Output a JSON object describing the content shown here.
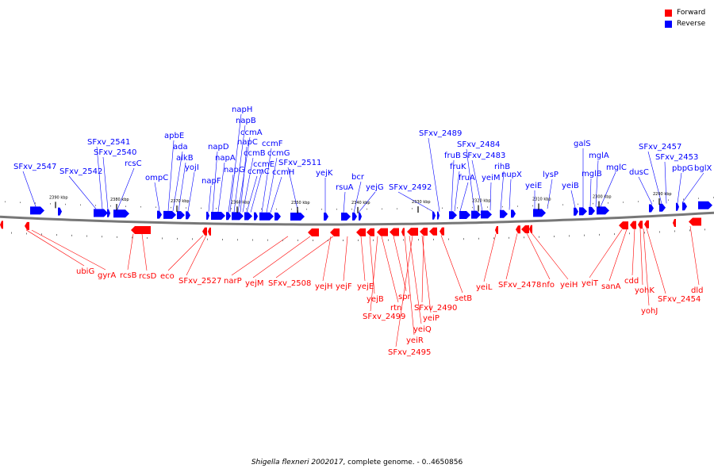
{
  "legend": {
    "forward_label": "Forward",
    "reverse_label": "Reverse",
    "forward_color": "#ff0000",
    "reverse_color": "#0000ff"
  },
  "caption": {
    "organism": "Shigella flexneri 2002017",
    "rest": ", complete genome. - 0..4650856"
  },
  "ruler": {
    "ticks": [
      "2390 kbp",
      "2380 kbp",
      "2370 kbp",
      "2360 kbp",
      "2350 kbp",
      "2340 kbp",
      "2330 kbp",
      "2320 kbp",
      "2310 kbp",
      "2300 kbp",
      "2290 kbp"
    ]
  },
  "genes": {
    "reverse": [
      "SFxv_2547",
      "SFxv_2542",
      "SFxv_2541",
      "SFxv_2540",
      "rcsC",
      "ompC",
      "apbE",
      "ada",
      "alkB",
      "yojI",
      "napF",
      "napD",
      "napA",
      "napG",
      "napH",
      "napB",
      "ccmA",
      "napC",
      "ccmB",
      "ccmC",
      "ccmE",
      "ccmF",
      "ccmG",
      "ccmH",
      "SFxv_2511",
      "yejK",
      "rsuA",
      "bcr",
      "yejG",
      "SFxv_2492",
      "SFxv_2489",
      "fruB",
      "fruK",
      "fruA",
      "SFxv_2484",
      "SFxv_2483",
      "yeiM",
      "rihB",
      "nupX",
      "yeiE",
      "lysP",
      "yeiB",
      "galS",
      "mglB",
      "mglA",
      "mglC",
      "dusC",
      "SFxv_2457",
      "SFxv_2453",
      "pbpG",
      "bglX"
    ],
    "forward": [
      "ubiG",
      "gyrA",
      "rcsB",
      "rcsD",
      "eco",
      "SFxv_2527",
      "narP",
      "yejM",
      "SFxv_2508",
      "yejH",
      "yejF",
      "yejE",
      "yejB",
      "SFxv_2499",
      "rtn",
      "spr",
      "yeiR",
      "yeiQ",
      "SFxv_2495",
      "yeiP",
      "SFxv_2490",
      "setB",
      "yeiL",
      "SFxv_2478",
      "nfo",
      "yeiH",
      "yeiT",
      "sanA",
      "cdd",
      "yohK",
      "yohJ",
      "SFxv_2454",
      "dld"
    ]
  }
}
